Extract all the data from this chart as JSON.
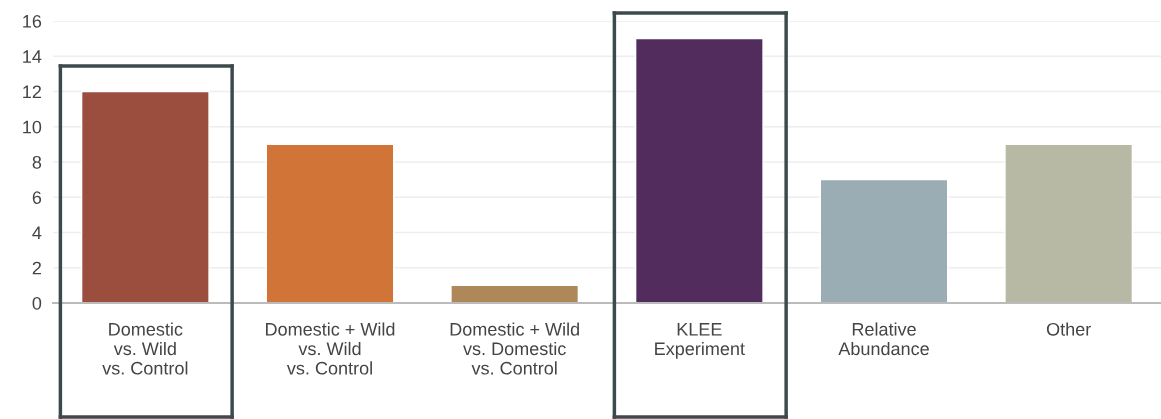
{
  "chart_data": {
    "type": "bar",
    "categories": [
      "Domestic\nvs. Wild\nvs. Control",
      "Domestic + Wild\nvs. Wild\nvs. Control",
      "Domestic + Wild\nvs. Domestic\nvs. Control",
      "KLEE\nExperiment",
      "Relative\nAbundance",
      "Other"
    ],
    "values": [
      12,
      9,
      1,
      15,
      7,
      9
    ],
    "colors": [
      "#9b4e3e",
      "#d07437",
      "#ae8858",
      "#532c5e",
      "#9aacb4",
      "#b7b9a5"
    ],
    "ylim": [
      0,
      16
    ],
    "yticks": [
      0,
      2,
      4,
      6,
      8,
      10,
      12,
      14,
      16
    ],
    "grid": "y"
  }
}
